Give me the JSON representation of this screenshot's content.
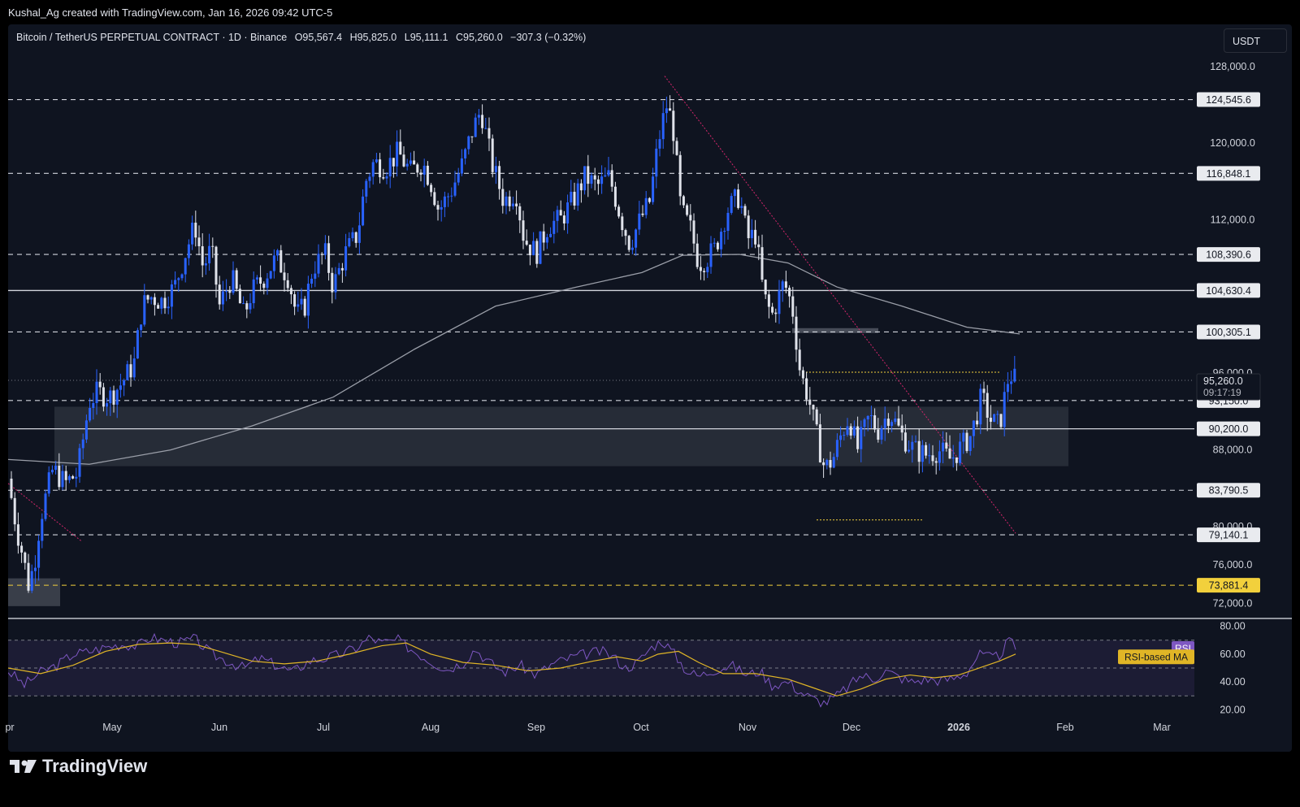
{
  "header": {
    "attribution": "Kushal_Ag created with TradingView.com, Jan 16, 2026 09:42 UTC-5",
    "symbol": "Bitcoin / TetherUS PERPETUAL CONTRACT · 1D · Binance",
    "open": "O95,567.4",
    "high": "H95,825.0",
    "low": "L95,111.1",
    "close": "C95,260.0",
    "change": "−307.3 (−0.32%)",
    "currency": "USDT"
  },
  "colors": {
    "background": "#0f1420",
    "up_candle": "#2962ff",
    "down_candle": "#e0e3eb",
    "ma200": "#9a9ea8",
    "rsi_line": "#7e57c2",
    "rsi_ma": "#e0b526",
    "trendline": "#d4266b",
    "yellow_levels": "#f2d03c"
  },
  "chart_data": [
    {
      "type": "candlestick",
      "title": "Bitcoin / TetherUS PERPETUAL CONTRACT · 1D · Binance",
      "y_axis": {
        "range": [
          70500,
          129000
        ],
        "ticks": [
          "128,000.0",
          "120,000.0",
          "112,000.0",
          "88,000.0",
          "76,000.0",
          "72,000.0"
        ]
      },
      "x_axis": {
        "ticks": [
          "pr",
          "May",
          "Jun",
          "Jul",
          "Aug",
          "Sep",
          "Oct",
          "Nov",
          "Dec",
          "2026",
          "Feb",
          "Mar"
        ]
      },
      "price_path": [
        [
          0,
          85000
        ],
        [
          10,
          80000
        ],
        [
          18,
          77000
        ],
        [
          25,
          74000
        ],
        [
          32,
          76000
        ],
        [
          40,
          81000
        ],
        [
          55,
          86000
        ],
        [
          70,
          84500
        ],
        [
          85,
          85500
        ],
        [
          100,
          93000
        ],
        [
          110,
          94000
        ],
        [
          125,
          93500
        ],
        [
          140,
          95000
        ],
        [
          155,
          97000
        ],
        [
          165,
          103000
        ],
        [
          175,
          104000
        ],
        [
          190,
          103500
        ],
        [
          205,
          105000
        ],
        [
          220,
          109000
        ],
        [
          230,
          111500
        ],
        [
          240,
          107000
        ],
        [
          250,
          109000
        ],
        [
          260,
          103000
        ],
        [
          275,
          106000
        ],
        [
          290,
          102000
        ],
        [
          300,
          104500
        ],
        [
          315,
          106000
        ],
        [
          330,
          108000
        ],
        [
          345,
          106000
        ],
        [
          355,
          102000
        ],
        [
          365,
          103000
        ],
        [
          375,
          107000
        ],
        [
          390,
          108500
        ],
        [
          400,
          105000
        ],
        [
          415,
          108500
        ],
        [
          430,
          110500
        ],
        [
          440,
          116000
        ],
        [
          450,
          118000
        ],
        [
          465,
          117500
        ],
        [
          480,
          119000
        ],
        [
          495,
          117000
        ],
        [
          510,
          118000
        ],
        [
          520,
          116000
        ],
        [
          530,
          113000
        ],
        [
          545,
          115000
        ],
        [
          560,
          118000
        ],
        [
          570,
          121000
        ],
        [
          582,
          123500
        ],
        [
          595,
          118000
        ],
        [
          610,
          114000
        ],
        [
          625,
          115000
        ],
        [
          635,
          110000
        ],
        [
          650,
          108500
        ],
        [
          665,
          111500
        ],
        [
          680,
          112000
        ],
        [
          695,
          114000
        ],
        [
          710,
          116500
        ],
        [
          725,
          115500
        ],
        [
          740,
          116500
        ],
        [
          755,
          112000
        ],
        [
          765,
          109500
        ],
        [
          778,
          112000
        ],
        [
          790,
          114000
        ],
        [
          800,
          120000
        ],
        [
          810,
          124000
        ],
        [
          818,
          122000
        ],
        [
          828,
          113000
        ],
        [
          840,
          111000
        ],
        [
          850,
          107500
        ],
        [
          860,
          108000
        ],
        [
          870,
          109000
        ],
        [
          885,
          113000
        ],
        [
          900,
          114500
        ],
        [
          910,
          110000
        ],
        [
          920,
          110500
        ],
        [
          930,
          104000
        ],
        [
          940,
          102000
        ],
        [
          955,
          105500
        ],
        [
          965,
          103000
        ],
        [
          975,
          96000
        ],
        [
          985,
          93500
        ],
        [
          995,
          89500
        ],
        [
          1005,
          86000
        ],
        [
          1015,
          87000
        ],
        [
          1025,
          89500
        ],
        [
          1035,
          91500
        ],
        [
          1045,
          88000
        ],
        [
          1060,
          91500
        ],
        [
          1070,
          90000
        ],
        [
          1085,
          92000
        ],
        [
          1100,
          89500
        ],
        [
          1115,
          88000
        ],
        [
          1130,
          87500
        ],
        [
          1145,
          88000
        ],
        [
          1160,
          87000
        ],
        [
          1175,
          88500
        ],
        [
          1185,
          89500
        ],
        [
          1198,
          93500
        ],
        [
          1210,
          91000
        ],
        [
          1220,
          90500
        ],
        [
          1232,
          96000
        ],
        [
          1240,
          95260
        ]
      ],
      "moving_average_200": [
        [
          0,
          87000
        ],
        [
          100,
          86500
        ],
        [
          200,
          88000
        ],
        [
          300,
          90500
        ],
        [
          400,
          93500
        ],
        [
          500,
          98500
        ],
        [
          600,
          103000
        ],
        [
          700,
          105000
        ],
        [
          780,
          106500
        ],
        [
          830,
          108300
        ],
        [
          900,
          108400
        ],
        [
          960,
          107500
        ],
        [
          1020,
          105000
        ],
        [
          1100,
          103000
        ],
        [
          1180,
          100800
        ],
        [
          1245,
          100100
        ]
      ],
      "horizontal_levels": [
        {
          "label": "124,545.6",
          "price": 124545.6,
          "style": "dashed"
        },
        {
          "label": "116,848.1",
          "price": 116848.1,
          "style": "dashed"
        },
        {
          "label": "108,390.6",
          "price": 108390.6,
          "style": "dashed"
        },
        {
          "label": "104,630.4",
          "price": 104630.4,
          "style": "solid"
        },
        {
          "label": "100,305.1",
          "price": 100305.1,
          "style": "dashed"
        },
        {
          "label": "93,150.0",
          "price": 93150.0,
          "style": "dashed"
        },
        {
          "label": "90,200.0",
          "price": 90200.0,
          "style": "solid"
        },
        {
          "label": "83,790.5",
          "price": 83790.5,
          "style": "dashed"
        },
        {
          "label": "79,140.1",
          "price": 79140.1,
          "style": "dashed"
        },
        {
          "label": "73,881.4",
          "price": 73881.4,
          "style": "dashed-yellow"
        }
      ],
      "last_price": {
        "label": "95,260.0",
        "countdown": "09:17:19",
        "price": 95260.0
      },
      "partially_hidden_ticks": [
        "96,000.0",
        "80,000.0"
      ],
      "zone": {
        "price_top": 92500,
        "price_bottom": 86300
      },
      "trendline": {
        "from": [
          808,
          127000
        ],
        "to": [
          1240,
          79300
        ]
      }
    },
    {
      "type": "line",
      "title": "RSI",
      "y_axis": {
        "range": [
          15,
          85
        ],
        "ticks": [
          "80.00",
          "60.00",
          "40.00",
          "20.00"
        ]
      },
      "bands": {
        "upper": 70,
        "middle": 50,
        "lower": 30
      },
      "series": [
        {
          "name": "RSI",
          "points": [
            [
              0,
              48
            ],
            [
              20,
              38
            ],
            [
              40,
              47
            ],
            [
              60,
              52
            ],
            [
              80,
              60
            ],
            [
              100,
              62
            ],
            [
              120,
              65
            ],
            [
              140,
              67
            ],
            [
              160,
              66
            ],
            [
              175,
              72
            ],
            [
              190,
              70
            ],
            [
              210,
              68
            ],
            [
              230,
              71
            ],
            [
              250,
              60
            ],
            [
              270,
              55
            ],
            [
              290,
              50
            ],
            [
              310,
              57
            ],
            [
              330,
              52
            ],
            [
              350,
              47
            ],
            [
              370,
              55
            ],
            [
              390,
              57
            ],
            [
              410,
              60
            ],
            [
              430,
              65
            ],
            [
              445,
              72
            ],
            [
              460,
              68
            ],
            [
              480,
              70
            ],
            [
              500,
              62
            ],
            [
              520,
              55
            ],
            [
              540,
              49
            ],
            [
              560,
              54
            ],
            [
              575,
              64
            ],
            [
              590,
              55
            ],
            [
              610,
              47
            ],
            [
              630,
              52
            ],
            [
              650,
              45
            ],
            [
              670,
              53
            ],
            [
              690,
              57
            ],
            [
              710,
              60
            ],
            [
              730,
              62
            ],
            [
              745,
              58
            ],
            [
              760,
              50
            ],
            [
              775,
              54
            ],
            [
              790,
              64
            ],
            [
              805,
              70
            ],
            [
              820,
              60
            ],
            [
              835,
              48
            ],
            [
              850,
              44
            ],
            [
              870,
              49
            ],
            [
              890,
              52
            ],
            [
              910,
              45
            ],
            [
              925,
              48
            ],
            [
              940,
              38
            ],
            [
              960,
              40
            ],
            [
              975,
              33
            ],
            [
              990,
              28
            ],
            [
              1005,
              25
            ],
            [
              1020,
              30
            ],
            [
              1035,
              37
            ],
            [
              1050,
              45
            ],
            [
              1065,
              42
            ],
            [
              1080,
              48
            ],
            [
              1095,
              44
            ],
            [
              1110,
              40
            ],
            [
              1130,
              42
            ],
            [
              1150,
              41
            ],
            [
              1165,
              43
            ],
            [
              1180,
              47
            ],
            [
              1195,
              60
            ],
            [
              1210,
              57
            ],
            [
              1220,
              59
            ],
            [
              1232,
              70
            ],
            [
              1240,
              64
            ]
          ]
        },
        {
          "name": "RSI-based MA",
          "points": [
            [
              0,
              50
            ],
            [
              40,
              46
            ],
            [
              80,
              52
            ],
            [
              120,
              62
            ],
            [
              160,
              67
            ],
            [
              200,
              68
            ],
            [
              230,
              67
            ],
            [
              260,
              62
            ],
            [
              300,
              55
            ],
            [
              340,
              53
            ],
            [
              380,
              55
            ],
            [
              420,
              60
            ],
            [
              460,
              66
            ],
            [
              490,
              68
            ],
            [
              520,
              60
            ],
            [
              560,
              54
            ],
            [
              600,
              52
            ],
            [
              640,
              48
            ],
            [
              680,
              50
            ],
            [
              720,
              55
            ],
            [
              750,
              58
            ],
            [
              780,
              55
            ],
            [
              800,
              60
            ],
            [
              825,
              62
            ],
            [
              850,
              54
            ],
            [
              880,
              46
            ],
            [
              920,
              46
            ],
            [
              960,
              42
            ],
            [
              990,
              36
            ],
            [
              1020,
              30
            ],
            [
              1050,
              35
            ],
            [
              1080,
              42
            ],
            [
              1110,
              45
            ],
            [
              1140,
              43
            ],
            [
              1170,
              45
            ],
            [
              1200,
              51
            ],
            [
              1220,
              55
            ],
            [
              1240,
              60
            ]
          ]
        }
      ],
      "legend": [
        "RSI",
        "RSI-based MA"
      ]
    }
  ],
  "footer": {
    "brand": "TradingView"
  }
}
